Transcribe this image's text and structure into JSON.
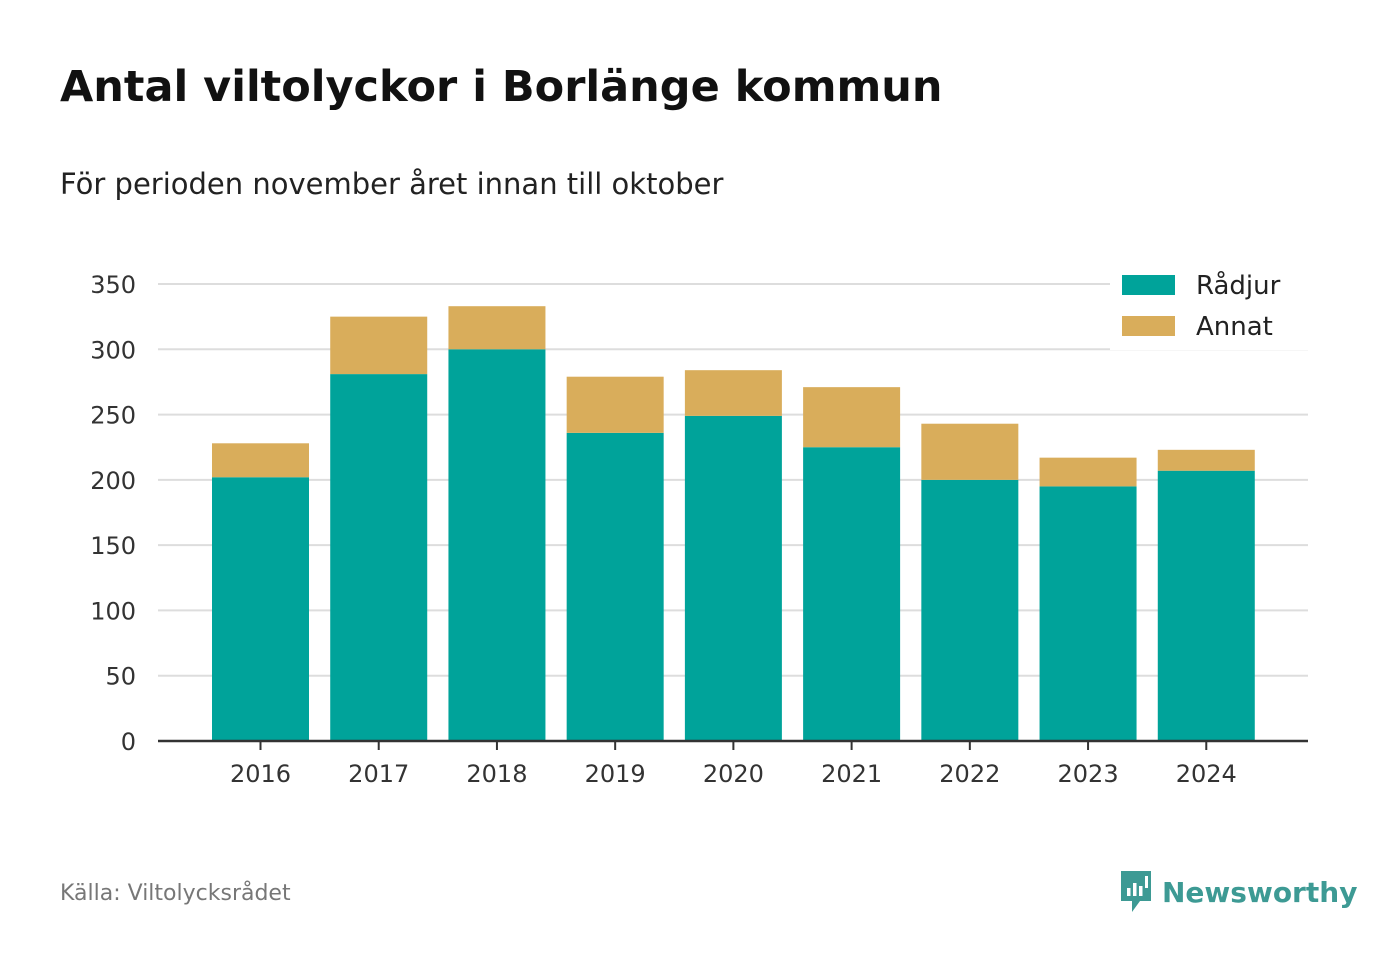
{
  "title": "Antal viltolyckor i Borlänge kommun",
  "subtitle": "För perioden november året innan till oktober",
  "source": "Källa: Viltolycksrådet",
  "brand": {
    "name": "Newsworthy",
    "icon": "newsworthy-logo-icon",
    "color": "#3d9a94"
  },
  "chart_data": {
    "type": "bar",
    "stacked": true,
    "categories": [
      "2016",
      "2017",
      "2018",
      "2019",
      "2020",
      "2021",
      "2022",
      "2023",
      "2024"
    ],
    "series": [
      {
        "name": "Rådjur",
        "color": "#00a39a",
        "values": [
          202,
          281,
          300,
          236,
          249,
          225,
          200,
          195,
          207
        ]
      },
      {
        "name": "Annat",
        "color": "#d9ad5b",
        "values": [
          26,
          44,
          33,
          43,
          35,
          46,
          43,
          22,
          16
        ]
      }
    ],
    "ylim": [
      0,
      350
    ],
    "yticks": [
      0,
      50,
      100,
      150,
      200,
      250,
      300,
      350
    ],
    "grid": true,
    "legend": "top-right",
    "xlabel": "",
    "ylabel": ""
  }
}
